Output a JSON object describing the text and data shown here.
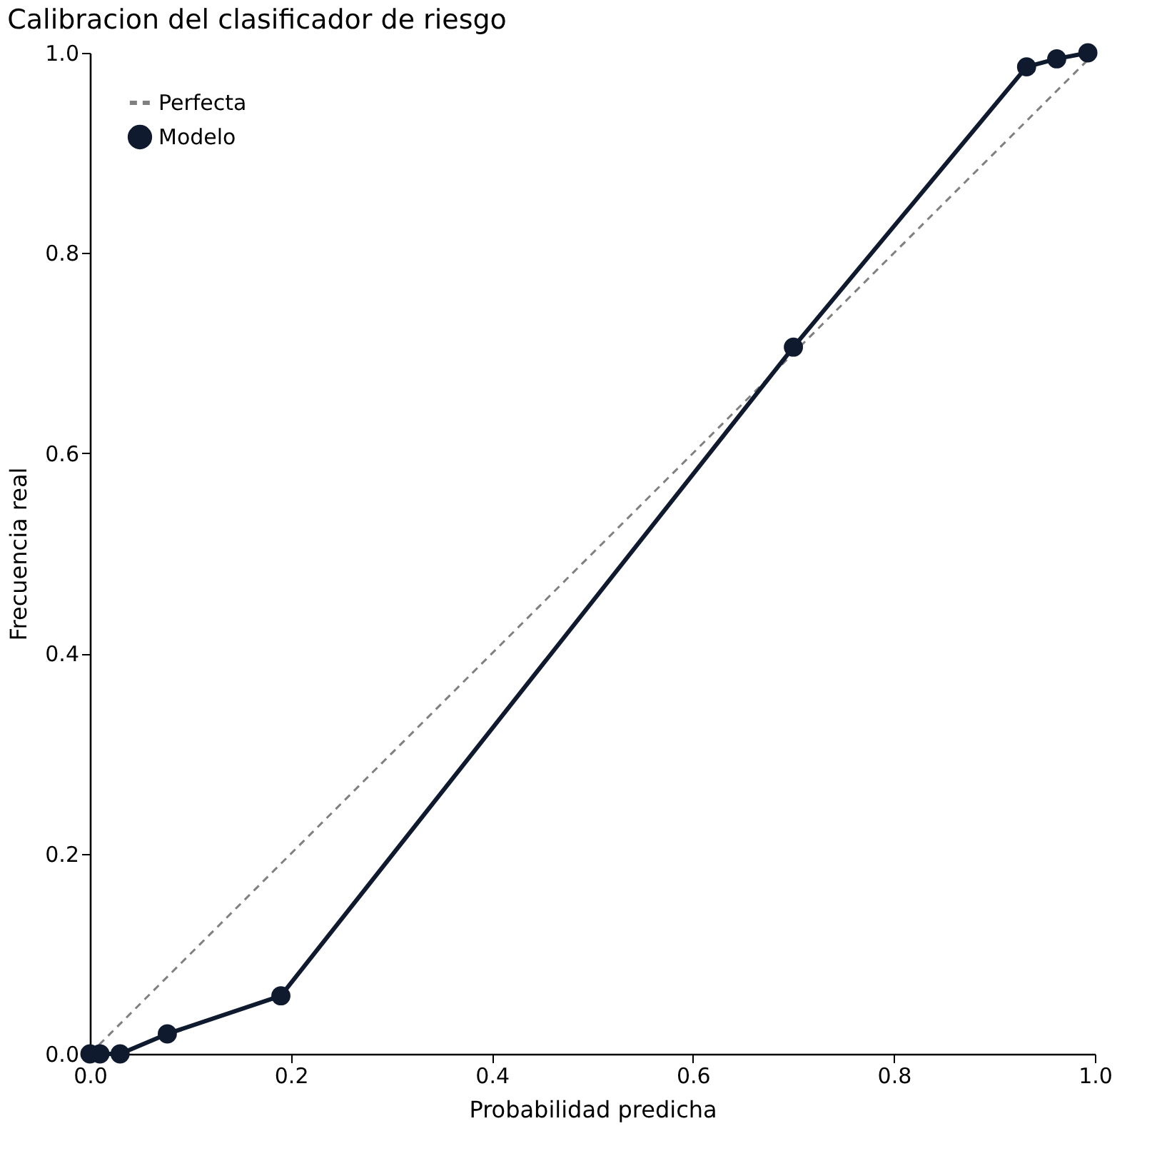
{
  "chart_data": {
    "type": "line",
    "title": "Calibracion del clasificador de riesgo",
    "xlabel": "Probabilidad predicha",
    "ylabel": "Frecuencia real",
    "xlim": [
      0,
      1
    ],
    "ylim": [
      0,
      1
    ],
    "xticks": [
      {
        "value": 0,
        "label": "0.0"
      },
      0.2,
      0.4,
      0.6,
      0.8,
      {
        "value": 1,
        "label": "1.0"
      }
    ],
    "yticks": [
      {
        "value": 0,
        "label": "0.0"
      },
      0.2,
      0.4,
      0.6,
      0.8,
      {
        "value": 1,
        "label": "1.0"
      }
    ],
    "grid": false,
    "legend": "top left",
    "series": [
      {
        "name": "Perfecta",
        "color": "#808080",
        "line_style": "dashed",
        "marker": "none",
        "x": [
          0,
          1
        ],
        "values": [
          0,
          1
        ]
      },
      {
        "name": "Modelo",
        "color": "#0f1a2e",
        "line_style": "solid",
        "marker": "circle",
        "x": [
          0,
          0.01,
          0.03,
          0.077,
          0.19,
          0.7,
          0.932,
          0.962,
          0.993
        ],
        "values": [
          0,
          0,
          0,
          0.02,
          0.058,
          0.706,
          0.986,
          0.994,
          1.0
        ]
      }
    ]
  }
}
